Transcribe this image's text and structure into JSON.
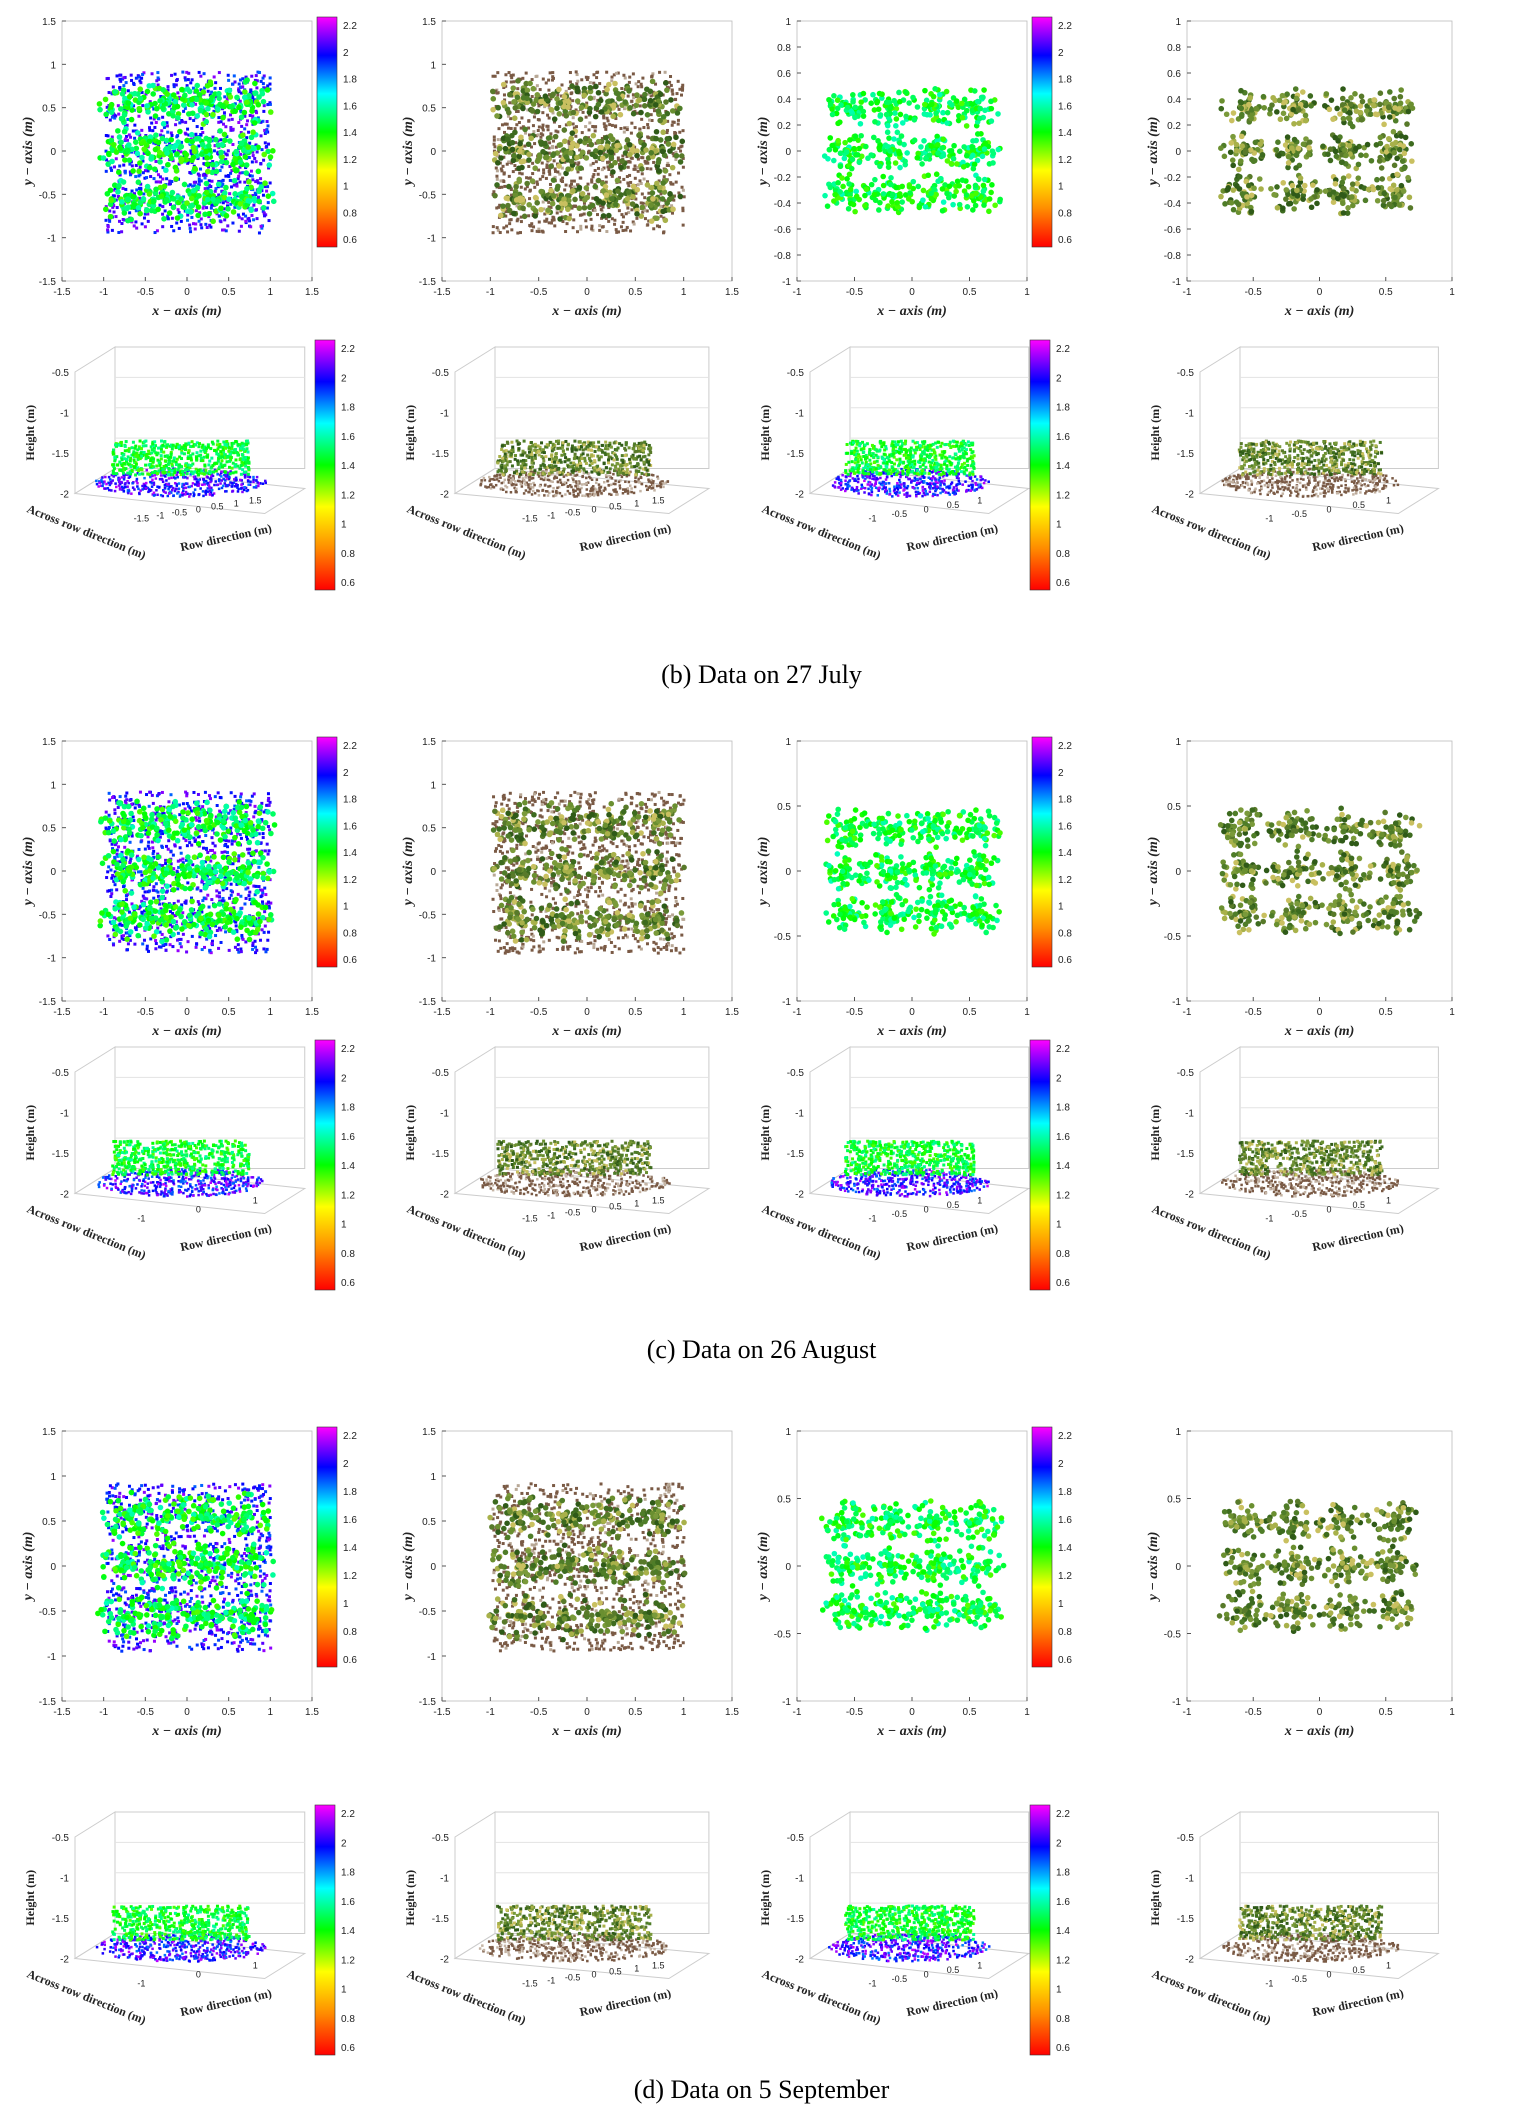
{
  "captions": [
    "(b) Data on 27 July",
    "(c) Data on 26 August",
    "(d) Data on 5 September"
  ],
  "labels": {
    "x_axis": "x − axis (m)",
    "y_axis": "y − axis (m)",
    "height": "Height (m)",
    "across": "Across row direction (m)",
    "row": "Row direction (m)"
  },
  "colorbar": {
    "ticks": [
      "2.2",
      "2",
      "1.8",
      "1.6",
      "1.4",
      "1.2",
      "1",
      "0.8",
      "0.6"
    ],
    "gradient": [
      "#ff0000",
      "#ff8c00",
      "#ffff00",
      "#00ff00",
      "#00ffff",
      "#0000ff",
      "#ff00ff"
    ]
  },
  "chart_data": [
    {
      "type": "scatter",
      "section": "(b) Data on 27 July",
      "view": "top",
      "mode": "height",
      "xlim": [
        -1.5,
        1.5
      ],
      "ylim": [
        -1.5,
        1.5
      ],
      "xticks": [
        "-1.5",
        "-1",
        "-0.5",
        "0",
        "0.5",
        "1",
        "1.5"
      ],
      "yticks": [
        "1.5",
        "1",
        "0.5",
        "0",
        "-0.5",
        "-1",
        "-1.5"
      ],
      "xlabel": "x − axis (m)",
      "ylabel": "y − axis (m)",
      "colorbar": [
        0.6,
        2.2
      ]
    },
    {
      "type": "scatter",
      "section": "(b) Data on 27 July",
      "view": "top",
      "mode": "rgb",
      "xlim": [
        -1.5,
        1.5
      ],
      "ylim": [
        -1.5,
        1.5
      ],
      "xticks": [
        "-1.5",
        "-1",
        "-0.5",
        "0",
        "0.5",
        "1",
        "1.5"
      ],
      "yticks": [
        "1.5",
        "1",
        "0.5",
        "0",
        "-0.5",
        "-1",
        "-1.5"
      ],
      "xlabel": "x − axis (m)",
      "ylabel": "y − axis (m)"
    },
    {
      "type": "scatter",
      "section": "(b) Data on 27 July",
      "view": "top",
      "mode": "height",
      "xlim": [
        -1,
        1
      ],
      "ylim": [
        -1,
        1
      ],
      "xticks": [
        "-1",
        "-0.5",
        "0",
        "0.5",
        "1"
      ],
      "yticks": [
        "1",
        "0.8",
        "0.6",
        "0.4",
        "0.2",
        "0",
        "-0.2",
        "-0.4",
        "-0.6",
        "-0.8",
        "-1"
      ],
      "xlabel": "x − axis (m)",
      "ylabel": "y − axis (m)",
      "colorbar": [
        0.6,
        2.2
      ]
    },
    {
      "type": "scatter",
      "section": "(b) Data on 27 July",
      "view": "top",
      "mode": "rgb",
      "xlim": [
        -1,
        1
      ],
      "ylim": [
        -1,
        1
      ],
      "xticks": [
        "-1",
        "-0.5",
        "0",
        "0.5",
        "1"
      ],
      "yticks": [
        "1",
        "0.8",
        "0.6",
        "0.4",
        "0.2",
        "0",
        "-0.2",
        "-0.4",
        "-0.6",
        "-0.8",
        "-1"
      ],
      "xlabel": "x − axis (m)",
      "ylabel": "y − axis (m)"
    },
    {
      "type": "scatter",
      "section": "(b) Data on 27 July",
      "view": "3d",
      "mode": "height",
      "zticks": [
        "-0.5",
        "-1",
        "-1.5",
        "-2"
      ],
      "rowticks": [
        "-1.5",
        "-1",
        "-0.5",
        "0",
        "0.5",
        "1",
        "1.5"
      ],
      "zlabel": "Height (m)",
      "xlabel": "Row direction (m)",
      "ylabel": "Across row direction (m)",
      "colorbar": [
        0.6,
        2.2
      ]
    },
    {
      "type": "scatter",
      "section": "(b) Data on 27 July",
      "view": "3d",
      "mode": "rgb",
      "zticks": [
        "-0.5",
        "-1",
        "-1.5",
        "-2"
      ],
      "rowticks": [
        "-1.5",
        "-1",
        "-0.5",
        "0",
        "0.5",
        "1",
        "1.5"
      ],
      "zlabel": "Height (m)",
      "xlabel": "Row direction (m)",
      "ylabel": "Across row direction (m)"
    },
    {
      "type": "scatter",
      "section": "(b) Data on 27 July",
      "view": "3d",
      "mode": "height",
      "zticks": [
        "-0.5",
        "-1",
        "-1.5",
        "-2"
      ],
      "rowticks": [
        "-1",
        "-0.5",
        "0",
        "0.5",
        "1"
      ],
      "zlabel": "Height (m)",
      "xlabel": "Row direction (m)",
      "ylabel": "Across row direction (m)",
      "colorbar": [
        0.6,
        2.2
      ]
    },
    {
      "type": "scatter",
      "section": "(b) Data on 27 July",
      "view": "3d",
      "mode": "rgb",
      "zticks": [
        "-0.5",
        "-1",
        "-1.5",
        "-2"
      ],
      "rowticks": [
        "-1",
        "-0.5",
        "0",
        "0.5",
        "1"
      ],
      "zlabel": "Height (m)",
      "xlabel": "Row direction (m)",
      "ylabel": "Across row direction (m)"
    },
    {
      "type": "scatter",
      "section": "(c) Data on 26 August",
      "view": "top",
      "mode": "height",
      "xlim": [
        -1.5,
        1.5
      ],
      "ylim": [
        -1.5,
        1.5
      ],
      "xticks": [
        "-1.5",
        "-1",
        "-0.5",
        "0",
        "0.5",
        "1",
        "1.5"
      ],
      "yticks": [
        "1.5",
        "1",
        "0.5",
        "0",
        "-0.5",
        "-1",
        "-1.5"
      ],
      "xlabel": "x − axis (m)",
      "ylabel": "y − axis (m)",
      "colorbar": [
        0.6,
        2.2
      ]
    },
    {
      "type": "scatter",
      "section": "(c) Data on 26 August",
      "view": "top",
      "mode": "rgb",
      "xlim": [
        -1.5,
        1.5
      ],
      "ylim": [
        -1.5,
        1.5
      ],
      "xticks": [
        "-1.5",
        "-1",
        "-0.5",
        "0",
        "0.5",
        "1",
        "1.5"
      ],
      "yticks": [
        "1.5",
        "1",
        "0.5",
        "0",
        "-0.5",
        "-1",
        "-1.5"
      ],
      "xlabel": "x − axis (m)",
      "ylabel": "y − axis (m)"
    },
    {
      "type": "scatter",
      "section": "(c) Data on 26 August",
      "view": "top",
      "mode": "height",
      "xlim": [
        -1,
        1
      ],
      "ylim": [
        -1,
        1
      ],
      "xticks": [
        "-1",
        "-0.5",
        "0",
        "0.5",
        "1"
      ],
      "yticks": [
        "1",
        "0.5",
        "0",
        "-0.5",
        "-1"
      ],
      "xlabel": "x − axis (m)",
      "ylabel": "y − axis (m)",
      "colorbar": [
        0.6,
        2.2
      ]
    },
    {
      "type": "scatter",
      "section": "(c) Data on 26 August",
      "view": "top",
      "mode": "rgb",
      "xlim": [
        -1,
        1
      ],
      "ylim": [
        -1,
        1
      ],
      "xticks": [
        "-1",
        "-0.5",
        "0",
        "0.5",
        "1"
      ],
      "yticks": [
        "1",
        "0.5",
        "0",
        "-0.5",
        "-1"
      ],
      "xlabel": "x − axis (m)",
      "ylabel": "y − axis (m)"
    },
    {
      "type": "scatter",
      "section": "(c) Data on 26 August",
      "view": "3d",
      "mode": "height",
      "zticks": [
        "-0.5",
        "-1",
        "-1.5",
        "-2"
      ],
      "rowticks": [
        "-1",
        "0",
        "1"
      ],
      "zlabel": "Height (m)",
      "xlabel": "Row direction (m)",
      "ylabel": "Across row direction (m)",
      "colorbar": [
        0.6,
        2.2
      ]
    },
    {
      "type": "scatter",
      "section": "(c) Data on 26 August",
      "view": "3d",
      "mode": "rgb",
      "zticks": [
        "-0.5",
        "-1",
        "-1.5",
        "-2"
      ],
      "rowticks": [
        "-1.5",
        "-1",
        "-0.5",
        "0",
        "0.5",
        "1",
        "1.5"
      ],
      "zlabel": "Height (m)",
      "xlabel": "Row direction (m)",
      "ylabel": "Across row direction (m)"
    },
    {
      "type": "scatter",
      "section": "(c) Data on 26 August",
      "view": "3d",
      "mode": "height",
      "zticks": [
        "-0.5",
        "-1",
        "-1.5",
        "-2"
      ],
      "rowticks": [
        "-1",
        "-0.5",
        "0",
        "0.5",
        "1"
      ],
      "zlabel": "Height (m)",
      "xlabel": "Row direction (m)",
      "ylabel": "Across row direction (m)",
      "colorbar": [
        0.6,
        2.2
      ]
    },
    {
      "type": "scatter",
      "section": "(c) Data on 26 August",
      "view": "3d",
      "mode": "rgb",
      "zticks": [
        "-0.5",
        "-1",
        "-1.5",
        "-2"
      ],
      "rowticks": [
        "-1",
        "-0.5",
        "0",
        "0.5",
        "1"
      ],
      "zlabel": "Height (m)",
      "xlabel": "Row direction (m)",
      "ylabel": "Across row direction (m)"
    },
    {
      "type": "scatter",
      "section": "(d) Data on 5 September",
      "view": "top",
      "mode": "height",
      "xlim": [
        -1.5,
        1.5
      ],
      "ylim": [
        -1.5,
        1.5
      ],
      "xticks": [
        "-1.5",
        "-1",
        "-0.5",
        "0",
        "0.5",
        "1",
        "1.5"
      ],
      "yticks": [
        "1.5",
        "1",
        "0.5",
        "0",
        "-0.5",
        "-1",
        "-1.5"
      ],
      "xlabel": "x − axis (m)",
      "ylabel": "y − axis (m)",
      "colorbar": [
        0.6,
        2.2
      ]
    },
    {
      "type": "scatter",
      "section": "(d) Data on 5 September",
      "view": "top",
      "mode": "rgb",
      "xlim": [
        -1.5,
        1.5
      ],
      "ylim": [
        -1.5,
        1.5
      ],
      "xticks": [
        "-1.5",
        "-1",
        "-0.5",
        "0",
        "0.5",
        "1",
        "1.5"
      ],
      "yticks": [
        "1.5",
        "1",
        "0.5",
        "0",
        "-0.5",
        "-1",
        "-1.5"
      ],
      "xlabel": "x − axis (m)",
      "ylabel": "y − axis (m)"
    },
    {
      "type": "scatter",
      "section": "(d) Data on 5 September",
      "view": "top",
      "mode": "height",
      "xlim": [
        -1,
        1
      ],
      "ylim": [
        -1,
        1
      ],
      "xticks": [
        "-1",
        "-0.5",
        "0",
        "0.5",
        "1"
      ],
      "yticks": [
        "1",
        "0.5",
        "0",
        "-0.5",
        "-1"
      ],
      "xlabel": "x − axis (m)",
      "ylabel": "y − axis (m)",
      "colorbar": [
        0.6,
        2.2
      ]
    },
    {
      "type": "scatter",
      "section": "(d) Data on 5 September",
      "view": "top",
      "mode": "rgb",
      "xlim": [
        -1,
        1
      ],
      "ylim": [
        -1,
        1
      ],
      "xticks": [
        "-1",
        "-0.5",
        "0",
        "0.5",
        "1"
      ],
      "yticks": [
        "1",
        "0.5",
        "0",
        "-0.5",
        "-1"
      ],
      "xlabel": "x − axis (m)",
      "ylabel": "y − axis (m)"
    },
    {
      "type": "scatter",
      "section": "(d) Data on 5 September",
      "view": "3d",
      "mode": "height",
      "zticks": [
        "-0.5",
        "-1",
        "-1.5",
        "-2"
      ],
      "rowticks": [
        "-1",
        "0",
        "1"
      ],
      "zlabel": "Height (m)",
      "xlabel": "Row direction (m)",
      "ylabel": "Across row direction (m)",
      "colorbar": [
        0.6,
        2.2
      ]
    },
    {
      "type": "scatter",
      "section": "(d) Data on 5 September",
      "view": "3d",
      "mode": "rgb",
      "zticks": [
        "-0.5",
        "-1",
        "-1.5",
        "-2"
      ],
      "rowticks": [
        "-1.5",
        "-1",
        "-0.5",
        "0",
        "0.5",
        "1",
        "1.5"
      ],
      "zlabel": "Height (m)",
      "xlabel": "Row direction (m)",
      "ylabel": "Across row direction (m)"
    },
    {
      "type": "scatter",
      "section": "(d) Data on 5 September",
      "view": "3d",
      "mode": "height",
      "zticks": [
        "-0.5",
        "-1",
        "-1.5",
        "-2"
      ],
      "rowticks": [
        "-1",
        "-0.5",
        "0",
        "0.5",
        "1"
      ],
      "zlabel": "Height (m)",
      "xlabel": "Row direction (m)",
      "ylabel": "Across row direction (m)",
      "colorbar": [
        0.6,
        2.2
      ]
    },
    {
      "type": "scatter",
      "section": "(d) Data on 5 September",
      "view": "3d",
      "mode": "rgb",
      "zticks": [
        "-0.5",
        "-1",
        "-1.5",
        "-2"
      ],
      "rowticks": [
        "-1",
        "-0.5",
        "0",
        "0.5",
        "1"
      ],
      "zlabel": "Height (m)",
      "xlabel": "Row direction (m)",
      "ylabel": "Across row direction (m)"
    }
  ]
}
